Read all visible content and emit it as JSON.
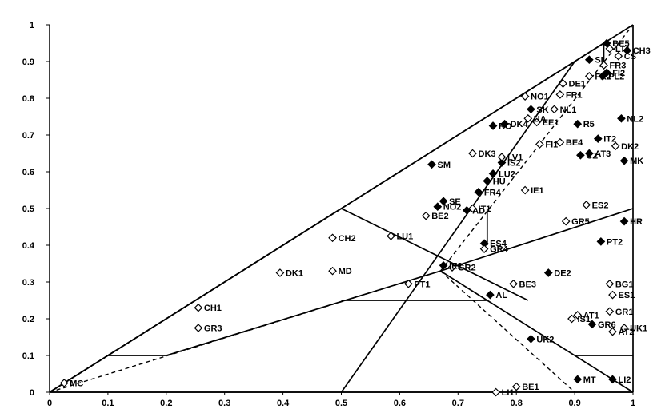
{
  "chart_data": {
    "type": "scatter",
    "title": "",
    "xlabel": "",
    "ylabel": "",
    "xlim": [
      0,
      1
    ],
    "ylim": [
      0,
      1
    ],
    "x_ticks": [
      "0",
      "0.1",
      "0.2",
      "0.3",
      "0.4",
      "0.5",
      "0.6",
      "0.7",
      "0.8",
      "0.9",
      "1"
    ],
    "y_ticks": [
      "0",
      "0.1",
      "0.2",
      "0.3",
      "0.4",
      "0.5",
      "0.6",
      "0.7",
      "0.8",
      "0.9",
      "1"
    ],
    "lines": [
      {
        "style": "solid",
        "points": [
          [
            0,
            0
          ],
          [
            1,
            1
          ]
        ]
      },
      {
        "style": "solid",
        "points": [
          [
            0,
            0
          ],
          [
            1,
            0
          ]
        ]
      },
      {
        "style": "solid",
        "points": [
          [
            1,
            0
          ],
          [
            1,
            1
          ]
        ]
      },
      {
        "style": "solid",
        "points": [
          [
            0,
            0
          ],
          [
            0.95,
            0.95
          ]
        ]
      },
      {
        "style": "solid",
        "points": [
          [
            0,
            0
          ],
          [
            0.5,
            0.5
          ]
        ]
      },
      {
        "style": "solid",
        "points": [
          [
            0.5,
            0
          ],
          [
            0.9,
            0.9
          ]
        ]
      },
      {
        "style": "solid",
        "points": [
          [
            0.5,
            0.5
          ],
          [
            0.82,
            0.25
          ]
        ]
      },
      {
        "style": "solid",
        "points": [
          [
            0.5,
            0.25
          ],
          [
            0.75,
            0.25
          ]
        ]
      },
      {
        "style": "solid",
        "points": [
          [
            0.1,
            0.1
          ],
          [
            0.2,
            0.1
          ]
        ]
      },
      {
        "style": "solid",
        "points": [
          [
            0.9,
            0.1
          ],
          [
            1,
            0.1
          ]
        ]
      },
      {
        "style": "solid",
        "points": [
          [
            0.75,
            0.4
          ],
          [
            0.75,
            0.5
          ]
        ]
      },
      {
        "style": "solid",
        "points": [
          [
            0.95,
            0.9
          ],
          [
            0.95,
            0.95
          ]
        ]
      },
      {
        "style": "solid",
        "points": [
          [
            0.2,
            0.1
          ],
          [
            0.67,
            0.33
          ]
        ]
      },
      {
        "style": "solid",
        "points": [
          [
            0.67,
            0.33
          ],
          [
            1,
            0.5
          ]
        ]
      },
      {
        "style": "solid",
        "points": [
          [
            0.67,
            0.33
          ],
          [
            0.75,
            0.25
          ]
        ]
      },
      {
        "style": "solid",
        "points": [
          [
            0.75,
            0.25
          ],
          [
            1,
            0
          ]
        ]
      },
      {
        "style": "dashed",
        "points": [
          [
            0,
            0
          ],
          [
            0.67,
            0.33
          ]
        ]
      },
      {
        "style": "dashed",
        "points": [
          [
            0.67,
            0.33
          ],
          [
            1,
            1
          ]
        ]
      },
      {
        "style": "dashed",
        "points": [
          [
            0.67,
            0.33
          ],
          [
            0.9,
            0
          ]
        ]
      }
    ],
    "series": [
      {
        "marker": "filled-diamond",
        "points": [
          {
            "label": "BE5",
            "x": 0.955,
            "y": 0.95
          },
          {
            "label": "CH3",
            "x": 0.99,
            "y": 0.93
          },
          {
            "label": "FI2",
            "x": 0.955,
            "y": 0.87
          },
          {
            "label": "PL2",
            "x": 0.948,
            "y": 0.86
          },
          {
            "label": "SI",
            "x": 0.925,
            "y": 0.905
          },
          {
            "label": "NL2",
            "x": 0.98,
            "y": 0.745
          },
          {
            "label": "R5",
            "x": 0.905,
            "y": 0.73
          },
          {
            "label": "IT2",
            "x": 0.94,
            "y": 0.69
          },
          {
            "label": "AT3",
            "x": 0.925,
            "y": 0.65
          },
          {
            "label": "CZ",
            "x": 0.91,
            "y": 0.645
          },
          {
            "label": "MK",
            "x": 0.985,
            "y": 0.63
          },
          {
            "label": "SK",
            "x": 0.825,
            "y": 0.77
          },
          {
            "label": "DK4",
            "x": 0.78,
            "y": 0.73
          },
          {
            "label": "RO",
            "x": 0.76,
            "y": 0.725
          },
          {
            "label": "IS2",
            "x": 0.775,
            "y": 0.625
          },
          {
            "label": "LU2",
            "x": 0.76,
            "y": 0.595
          },
          {
            "label": "HU",
            "x": 0.75,
            "y": 0.575
          },
          {
            "label": "SM",
            "x": 0.655,
            "y": 0.62
          },
          {
            "label": "FR4",
            "x": 0.735,
            "y": 0.545
          },
          {
            "label": "SE",
            "x": 0.675,
            "y": 0.52
          },
          {
            "label": "NO2",
            "x": 0.665,
            "y": 0.505
          },
          {
            "label": "AD",
            "x": 0.715,
            "y": 0.495
          },
          {
            "label": "HR",
            "x": 0.985,
            "y": 0.465
          },
          {
            "label": "PT2",
            "x": 0.945,
            "y": 0.41
          },
          {
            "label": "ES4",
            "x": 0.745,
            "y": 0.405
          },
          {
            "label": "IE2",
            "x": 0.675,
            "y": 0.345
          },
          {
            "label": "DE2",
            "x": 0.855,
            "y": 0.325
          },
          {
            "label": "AL",
            "x": 0.755,
            "y": 0.265
          },
          {
            "label": "GR6",
            "x": 0.93,
            "y": 0.185
          },
          {
            "label": "UK2",
            "x": 0.825,
            "y": 0.145
          },
          {
            "label": "MT",
            "x": 0.905,
            "y": 0.035
          },
          {
            "label": "LI2",
            "x": 0.965,
            "y": 0.035
          }
        ]
      },
      {
        "marker": "hollow-diamond",
        "points": [
          {
            "label": "LT1",
            "x": 0.96,
            "y": 0.935
          },
          {
            "label": "CS",
            "x": 0.975,
            "y": 0.915
          },
          {
            "label": "FR3",
            "x": 0.95,
            "y": 0.89
          },
          {
            "label": "FR2",
            "x": 0.925,
            "y": 0.86
          },
          {
            "label": "DE1",
            "x": 0.88,
            "y": 0.84
          },
          {
            "label": "NO1",
            "x": 0.815,
            "y": 0.805
          },
          {
            "label": "FR1",
            "x": 0.875,
            "y": 0.81
          },
          {
            "label": "NL1",
            "x": 0.865,
            "y": 0.77
          },
          {
            "label": "UA",
            "x": 0.82,
            "y": 0.745
          },
          {
            "label": "EE1",
            "x": 0.835,
            "y": 0.735
          },
          {
            "label": "DK2",
            "x": 0.97,
            "y": 0.67
          },
          {
            "label": "BE4",
            "x": 0.875,
            "y": 0.68
          },
          {
            "label": "FI1",
            "x": 0.84,
            "y": 0.675
          },
          {
            "label": "DK3",
            "x": 0.725,
            "y": 0.65
          },
          {
            "label": "LV1",
            "x": 0.775,
            "y": 0.64
          },
          {
            "label": "IE1",
            "x": 0.815,
            "y": 0.55
          },
          {
            "label": "ES2",
            "x": 0.92,
            "y": 0.51
          },
          {
            "label": "GR5",
            "x": 0.885,
            "y": 0.465
          },
          {
            "label": "BE2",
            "x": 0.645,
            "y": 0.48
          },
          {
            "label": "IT1",
            "x": 0.725,
            "y": 0.5
          },
          {
            "label": "LU1",
            "x": 0.585,
            "y": 0.425
          },
          {
            "label": "CH2",
            "x": 0.485,
            "y": 0.42
          },
          {
            "label": "GR4",
            "x": 0.745,
            "y": 0.39
          },
          {
            "label": "GR2",
            "x": 0.69,
            "y": 0.34
          },
          {
            "label": "MD",
            "x": 0.485,
            "y": 0.33
          },
          {
            "label": "DK1",
            "x": 0.395,
            "y": 0.325
          },
          {
            "label": "PT1",
            "x": 0.615,
            "y": 0.295
          },
          {
            "label": "BE3",
            "x": 0.795,
            "y": 0.295
          },
          {
            "label": "BG1",
            "x": 0.96,
            "y": 0.295
          },
          {
            "label": "ES1",
            "x": 0.965,
            "y": 0.265
          },
          {
            "label": "GR1",
            "x": 0.96,
            "y": 0.22
          },
          {
            "label": "AT1",
            "x": 0.905,
            "y": 0.21
          },
          {
            "label": "IS1",
            "x": 0.895,
            "y": 0.2
          },
          {
            "label": "UK1",
            "x": 0.985,
            "y": 0.175
          },
          {
            "label": "AT2",
            "x": 0.965,
            "y": 0.165
          },
          {
            "label": "CH1",
            "x": 0.255,
            "y": 0.23
          },
          {
            "label": "GR3",
            "x": 0.255,
            "y": 0.175
          },
          {
            "label": "MC",
            "x": 0.025,
            "y": 0.025
          },
          {
            "label": "LI1",
            "x": 0.765,
            "y": 0.0
          },
          {
            "label": "BE1",
            "x": 0.8,
            "y": 0.015
          }
        ]
      }
    ]
  }
}
